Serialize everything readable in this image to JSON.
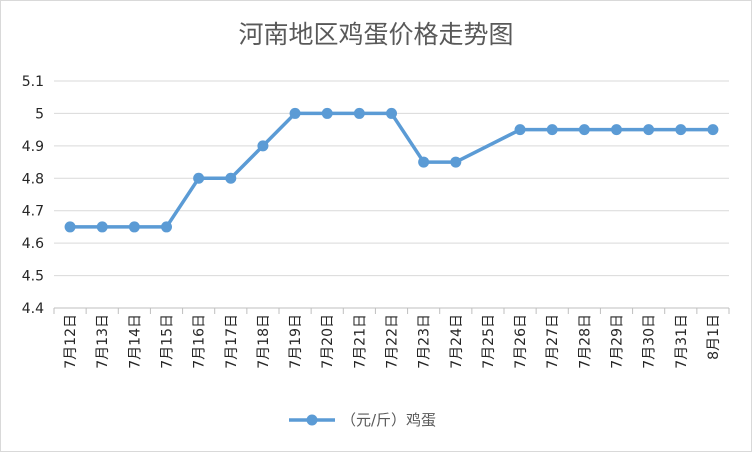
{
  "chart_data": {
    "type": "line",
    "title": "河南地区鸡蛋价格走势图",
    "xlabel": "",
    "ylabel": "",
    "categories": [
      "7月12日",
      "7月13日",
      "7月14日",
      "7月15日",
      "7月16日",
      "7月17日",
      "7月18日",
      "7月19日",
      "7月20日",
      "7月21日",
      "7月22日",
      "7月23日",
      "7月24日",
      "7月25日",
      "7月26日",
      "7月27日",
      "7月28日",
      "7月29日",
      "7月30日",
      "7月31日",
      "8月1日"
    ],
    "series": [
      {
        "name": "（元/斤）鸡蛋",
        "values": [
          4.65,
          4.65,
          4.65,
          4.65,
          4.8,
          4.8,
          4.9,
          5.0,
          5.0,
          5.0,
          5.0,
          4.85,
          4.85,
          null,
          4.95,
          4.95,
          4.95,
          4.95,
          4.95,
          4.95,
          4.95
        ],
        "color": "#5b9bd5"
      }
    ],
    "ylim": [
      4.4,
      5.1
    ],
    "yticks": [
      "4.4",
      "4.5",
      "4.6",
      "4.7",
      "4.8",
      "4.9",
      "5",
      "5.1"
    ],
    "grid": true,
    "legend_position": "bottom"
  }
}
